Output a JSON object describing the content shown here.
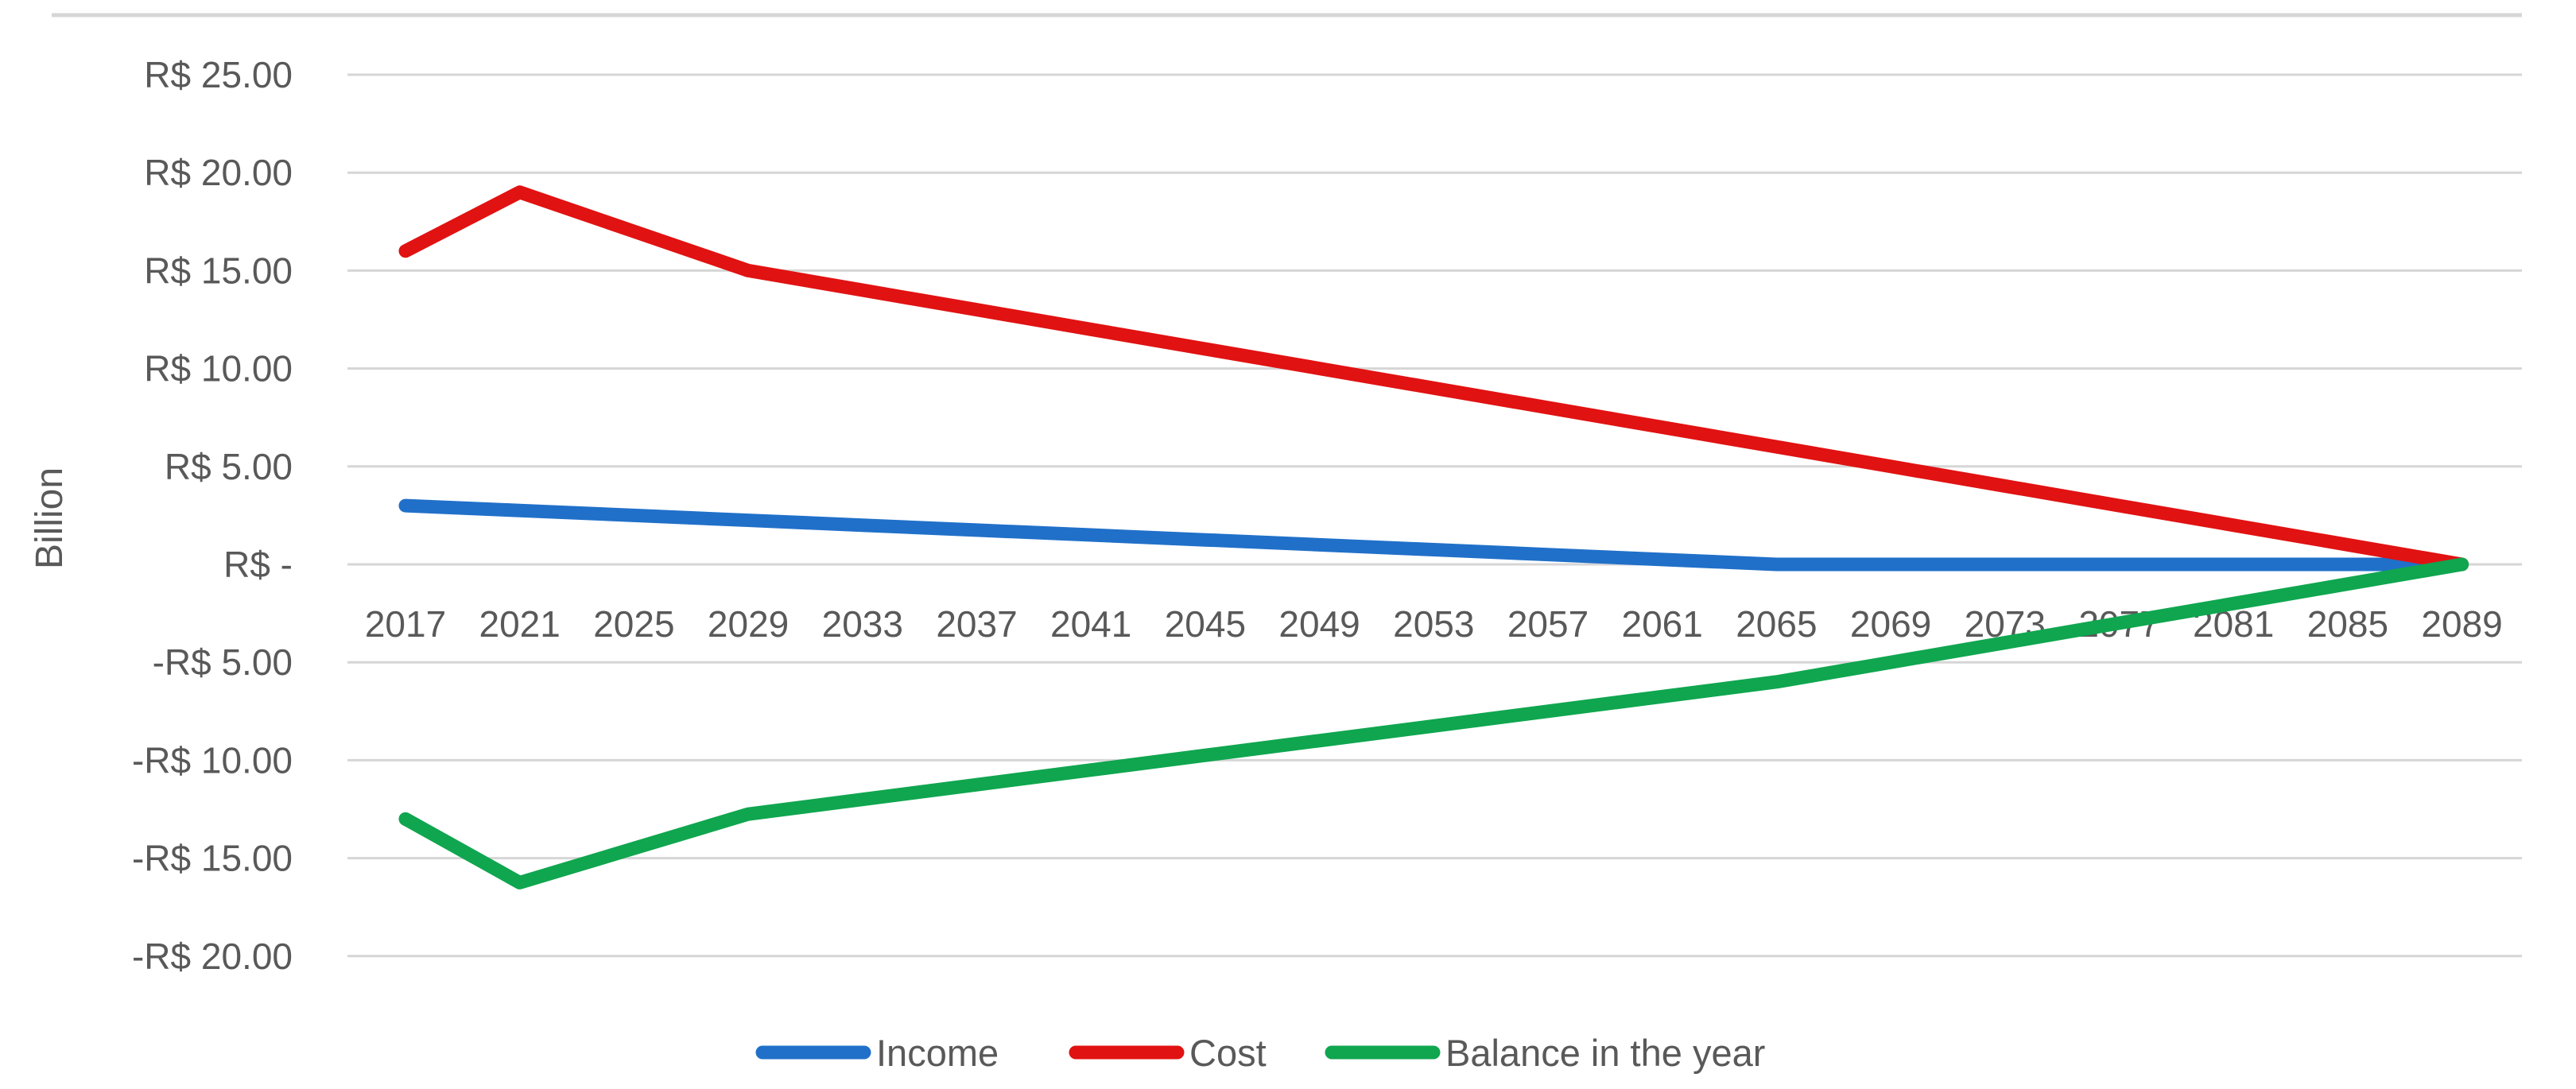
{
  "chart_data": {
    "type": "line",
    "title": "",
    "ylabel": "Billion",
    "categories": [
      "2017",
      "2021",
      "2025",
      "2029",
      "2033",
      "2037",
      "2041",
      "2045",
      "2049",
      "2053",
      "2057",
      "2061",
      "2065",
      "2069",
      "2073",
      "2077",
      "2081",
      "2085",
      "2089"
    ],
    "y_ticks": [
      {
        "v": 25,
        "label": "R$ 25.00"
      },
      {
        "v": 20,
        "label": "R$ 20.00"
      },
      {
        "v": 15,
        "label": "R$ 15.00"
      },
      {
        "v": 10,
        "label": "R$ 10.00"
      },
      {
        "v": 5,
        "label": "R$ 5.00"
      },
      {
        "v": 0,
        "label": "R$ -"
      },
      {
        "v": -5,
        "label": "-R$ 5.00"
      },
      {
        "v": -10,
        "label": "-R$ 10.00"
      },
      {
        "v": -15,
        "label": "-R$ 15.00"
      },
      {
        "v": -20,
        "label": "-R$ 20.00"
      }
    ],
    "ylim": [
      -20,
      25
    ],
    "grid": true,
    "legend_position": "bottom",
    "series": [
      {
        "name": "Income",
        "color": "#2070C9",
        "values": [
          3,
          2.75,
          2.5,
          2.25,
          2,
          1.75,
          1.5,
          1.25,
          1,
          0.75,
          0.5,
          0.25,
          0,
          0,
          0,
          0,
          0,
          0,
          0
        ]
      },
      {
        "name": "Cost",
        "color": "#E11212",
        "values": [
          16,
          19,
          17,
          15,
          14,
          13,
          12,
          11,
          10,
          9,
          8,
          7,
          6,
          5,
          4,
          3,
          2,
          1,
          0
        ]
      },
      {
        "name": "Balance in the year",
        "color": "#0FA64F",
        "values": [
          -13,
          -16.25,
          -14.5,
          -12.75,
          -12,
          -11.25,
          -10.5,
          -9.75,
          -9,
          -8.25,
          -7.5,
          -6.75,
          -6,
          -5,
          -4,
          -3,
          -2,
          -1,
          0
        ]
      }
    ],
    "colors": {
      "grid": "#D6D6D6",
      "axis_text": "#595959"
    }
  }
}
